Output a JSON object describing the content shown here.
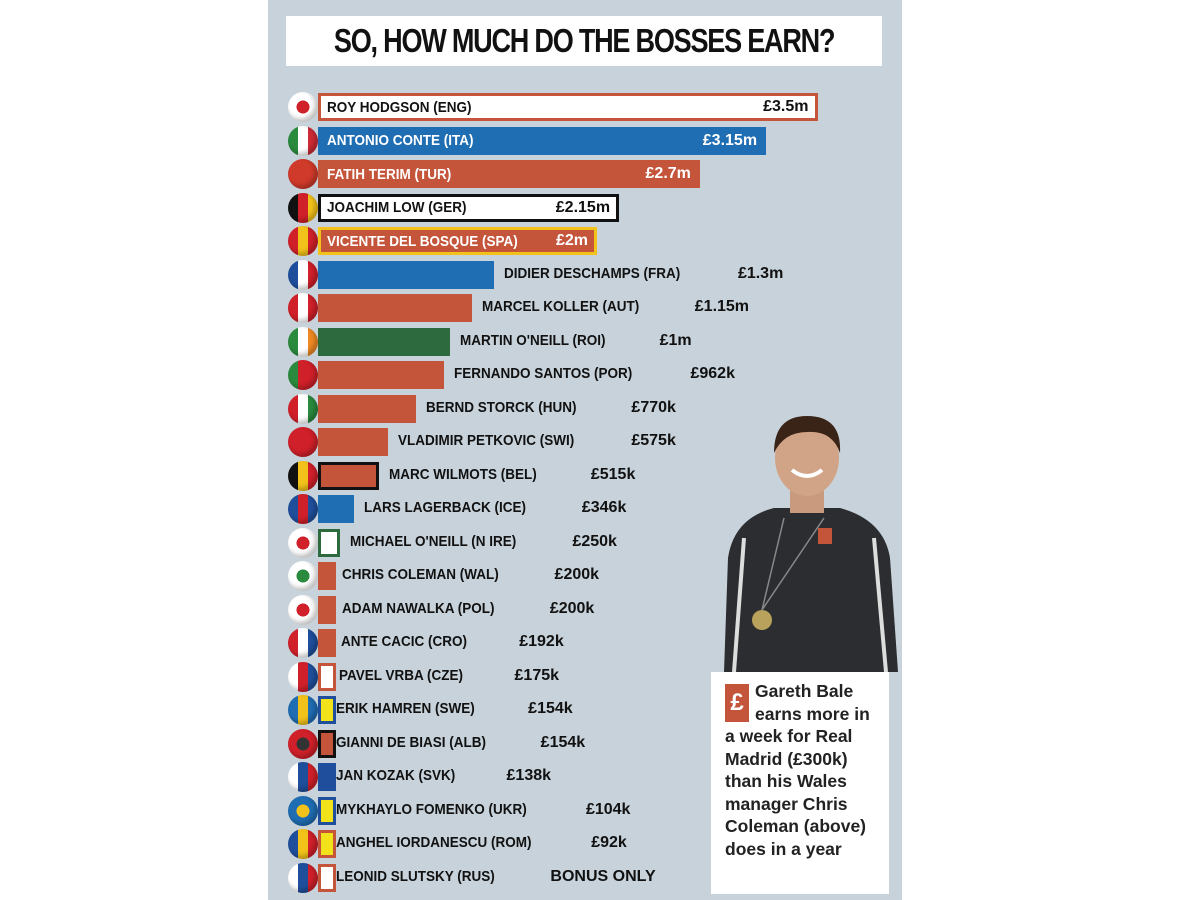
{
  "title": "SO, HOW MUCH DO THE BOSSES EARN?",
  "chart_data": {
    "type": "bar",
    "orientation": "horizontal",
    "title": "SO, HOW MUCH DO THE BOSSES EARN?",
    "unit": "£m",
    "categories": [
      "ROY HODGSON (ENG)",
      "ANTONIO CONTE (ITA)",
      "FATIH TERIM (TUR)",
      "JOACHIM LOW (GER)",
      "VICENTE DEL BOSQUE (SPA)",
      "DIDIER DESCHAMPS (FRA)",
      "MARCEL KOLLER (AUT)",
      "MARTIN O'NEILL (ROI)",
      "FERNANDO SANTOS (POR)",
      "BERND STORCK (HUN)",
      "VLADIMIR PETKOVIC (SWI)",
      "MARC WILMOTS (BEL)",
      "LARS LAGERBACK (ICE)",
      "MICHAEL O'NEILL (N IRE)",
      "CHRIS COLEMAN (WAL)",
      "ADAM NAWALKA (POL)",
      "ANTE CACIC (CRO)",
      "PAVEL VRBA (CZE)",
      "ERIK HAMREN (SWE)",
      "GIANNI DE BIASI (ALB)",
      "JAN KOZAK (SVK)",
      "MYKHAYLO FOMENKO (UKR)",
      "ANGHEL IORDANESCU (ROM)",
      "LEONID SLUTSKY (RUS)"
    ],
    "values": [
      3.5,
      3.15,
      2.7,
      2.15,
      2.0,
      1.3,
      1.15,
      1.0,
      0.962,
      0.77,
      0.575,
      0.515,
      0.346,
      0.25,
      0.2,
      0.2,
      0.192,
      0.175,
      0.154,
      0.154,
      0.138,
      0.104,
      0.092,
      0
    ],
    "value_labels": [
      "£3.5m",
      "£3.15m",
      "£2.7m",
      "£2.15m",
      "£2m",
      "£1.3m",
      "£1.15m",
      "£1m",
      "£962k",
      "£770k",
      "£575k",
      "£515k",
      "£346k",
      "£250k",
      "£200k",
      "£200k",
      "£192k",
      "£175k",
      "£154k",
      "£154k",
      "£138k",
      "£104k",
      "£92k",
      "BONUS ONLY"
    ],
    "bar_colors": [
      "#ffffff",
      "#1f6db3",
      "#c4553a",
      "#ffffff",
      "#c4553a",
      "#1f6db3",
      "#c4553a",
      "#2d6b3e",
      "#c4553a",
      "#c4553a",
      "#c4553a",
      "#c4553a",
      "#1f6db3",
      "#ffffff",
      "#c4553a",
      "#c4553a",
      "#c4553a",
      "#ffffff",
      "#f2e21a",
      "#c4553a",
      "#1f4f9c",
      "#f2e21a",
      "#f2e21a",
      "#ffffff"
    ],
    "bar_borders": [
      "#c4553a",
      "#1f6db3",
      "#c4553a",
      "#111111",
      "#f2c21a",
      "#1f6db3",
      "#c4553a",
      "#2d6b3e",
      "#c4553a",
      "#c4553a",
      "#c4553a",
      "#111111",
      "#1f6db3",
      "#2d6b3e",
      "#c4553a",
      "#c4553a",
      "#c4553a",
      "#c4553a",
      "#1f4f9c",
      "#111111",
      "#1f4f9c",
      "#1f4f9c",
      "#c4553a",
      "#c4553a"
    ],
    "text_colors": [
      "#111111",
      "#ffffff",
      "#ffffff",
      "#111111",
      "#ffffff"
    ],
    "flag_colors": [
      [
        "#ffffff",
        "#d0202a"
      ],
      [
        "#2a8a3e",
        "#ffffff",
        "#cf2b36"
      ],
      [
        "#d03a2a",
        "#d03a2a"
      ],
      [
        "#111111",
        "#d0202a",
        "#f2c21a"
      ],
      [
        "#d0202a",
        "#f2c21a",
        "#d0202a"
      ],
      [
        "#1f4f9c",
        "#ffffff",
        "#d0202a"
      ],
      [
        "#d0202a",
        "#ffffff",
        "#d0202a"
      ],
      [
        "#2a8a3e",
        "#ffffff",
        "#f08a24"
      ],
      [
        "#2a8a3e",
        "#d0202a",
        "#d0202a"
      ],
      [
        "#d0202a",
        "#ffffff",
        "#2a8a3e"
      ],
      [
        "#d0202a",
        "#d0202a"
      ],
      [
        "#111111",
        "#f2c21a",
        "#d0202a"
      ],
      [
        "#1f4f9c",
        "#d0202a",
        "#1f4f9c"
      ],
      [
        "#ffffff",
        "#d0202a"
      ],
      [
        "#ffffff",
        "#2a8a3e"
      ],
      [
        "#ffffff",
        "#d0202a"
      ],
      [
        "#d0202a",
        "#ffffff",
        "#1f4f9c"
      ],
      [
        "#ffffff",
        "#d0202a",
        "#1f4f9c"
      ],
      [
        "#1f6db3",
        "#f2c21a",
        "#1f6db3"
      ],
      [
        "#d0202a",
        "#333333"
      ],
      [
        "#ffffff",
        "#1f4f9c",
        "#d0202a"
      ],
      [
        "#1f6db3",
        "#f2c21a"
      ],
      [
        "#1f4f9c",
        "#f2c21a",
        "#d0202a"
      ],
      [
        "#ffffff",
        "#1f4f9c",
        "#d0202a"
      ]
    ],
    "labels_inside_bar_count": 5,
    "xlim": [
      0,
      3.5
    ]
  },
  "note": {
    "icon": "£",
    "text": "Gareth Bale earns more in a week for Real Madrid (£300k) than his Wales manager Chris Coleman (above) does in a year"
  },
  "colors": {
    "panel": "#c7d2da",
    "accent": "#c4553a"
  }
}
